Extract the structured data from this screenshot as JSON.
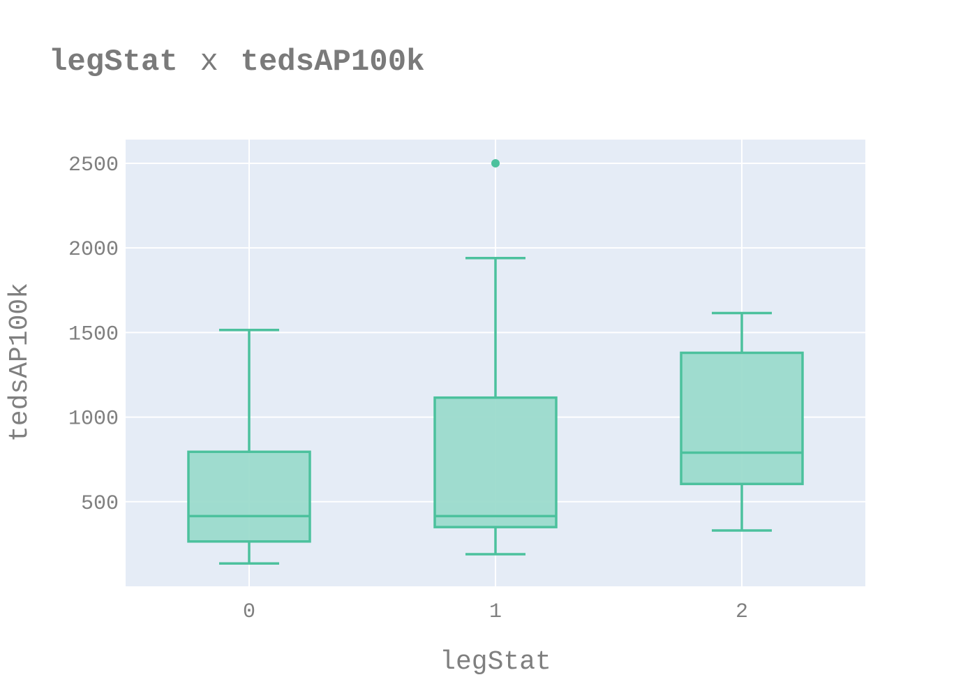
{
  "chart_data": {
    "type": "box",
    "title_parts": {
      "left": "legStat",
      "sep": "x",
      "right": "tedsAP100k"
    },
    "xlabel": "legStat",
    "ylabel": "tedsAP100k",
    "categories": [
      "0",
      "1",
      "2"
    ],
    "yticks": [
      500,
      1000,
      1500,
      2000,
      2500
    ],
    "ylim": [
      0,
      2640
    ],
    "grid": true,
    "colors": {
      "plot_bg": "#e5ecf6",
      "grid": "#ffffff",
      "box_line": "#4cc19d",
      "box_fill": "#99dacb",
      "text": "#7f7f7f"
    },
    "boxes": [
      {
        "category": "0",
        "lower_whisker": 135,
        "q1": 265,
        "median": 415,
        "q3": 795,
        "upper_whisker": 1515,
        "outliers": []
      },
      {
        "category": "1",
        "lower_whisker": 190,
        "q1": 350,
        "median": 415,
        "q3": 1115,
        "upper_whisker": 1940,
        "outliers": [
          2500
        ]
      },
      {
        "category": "2",
        "lower_whisker": 330,
        "q1": 605,
        "median": 790,
        "q3": 1380,
        "upper_whisker": 1615,
        "outliers": []
      }
    ]
  }
}
